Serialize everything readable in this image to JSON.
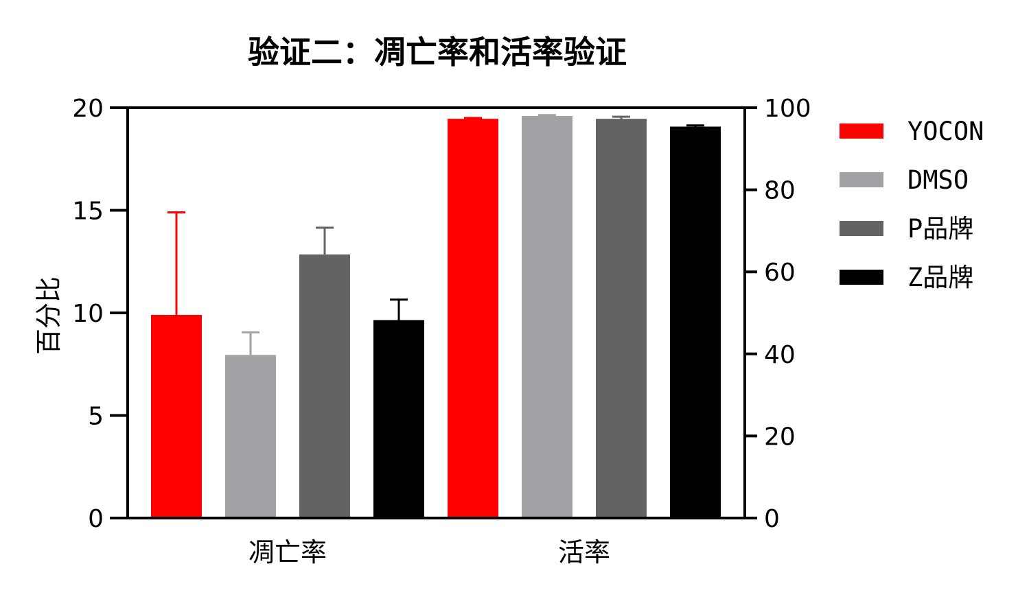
{
  "chart_data": {
    "type": "bar",
    "title": "验证二：凋亡率和活率验证",
    "ylabel": "百分比",
    "ylim": [
      0,
      20
    ],
    "yticks": [
      0,
      5,
      10,
      15,
      20
    ],
    "y2lim": [
      0,
      100
    ],
    "y2ticks": [
      0,
      20,
      40,
      60,
      80,
      100
    ],
    "categories": [
      "凋亡率",
      "活率"
    ],
    "category_axis": [
      "left",
      "right"
    ],
    "grid": false,
    "legend_position": "right",
    "series": [
      {
        "name": "YOCON",
        "color": "#ff0000",
        "values": [
          9.9,
          97.3
        ],
        "errors": [
          5.0,
          0.2
        ]
      },
      {
        "name": "DMSO",
        "color": "#a2a2a6",
        "values": [
          7.95,
          98.0
        ],
        "errors": [
          1.1,
          0.2
        ]
      },
      {
        "name": "P品牌",
        "color": "#636363",
        "values": [
          12.85,
          97.3
        ],
        "errors": [
          1.3,
          0.5
        ]
      },
      {
        "name": "Z品牌",
        "color": "#000000",
        "values": [
          9.65,
          95.4
        ],
        "errors": [
          1.0,
          0.3
        ]
      }
    ]
  }
}
